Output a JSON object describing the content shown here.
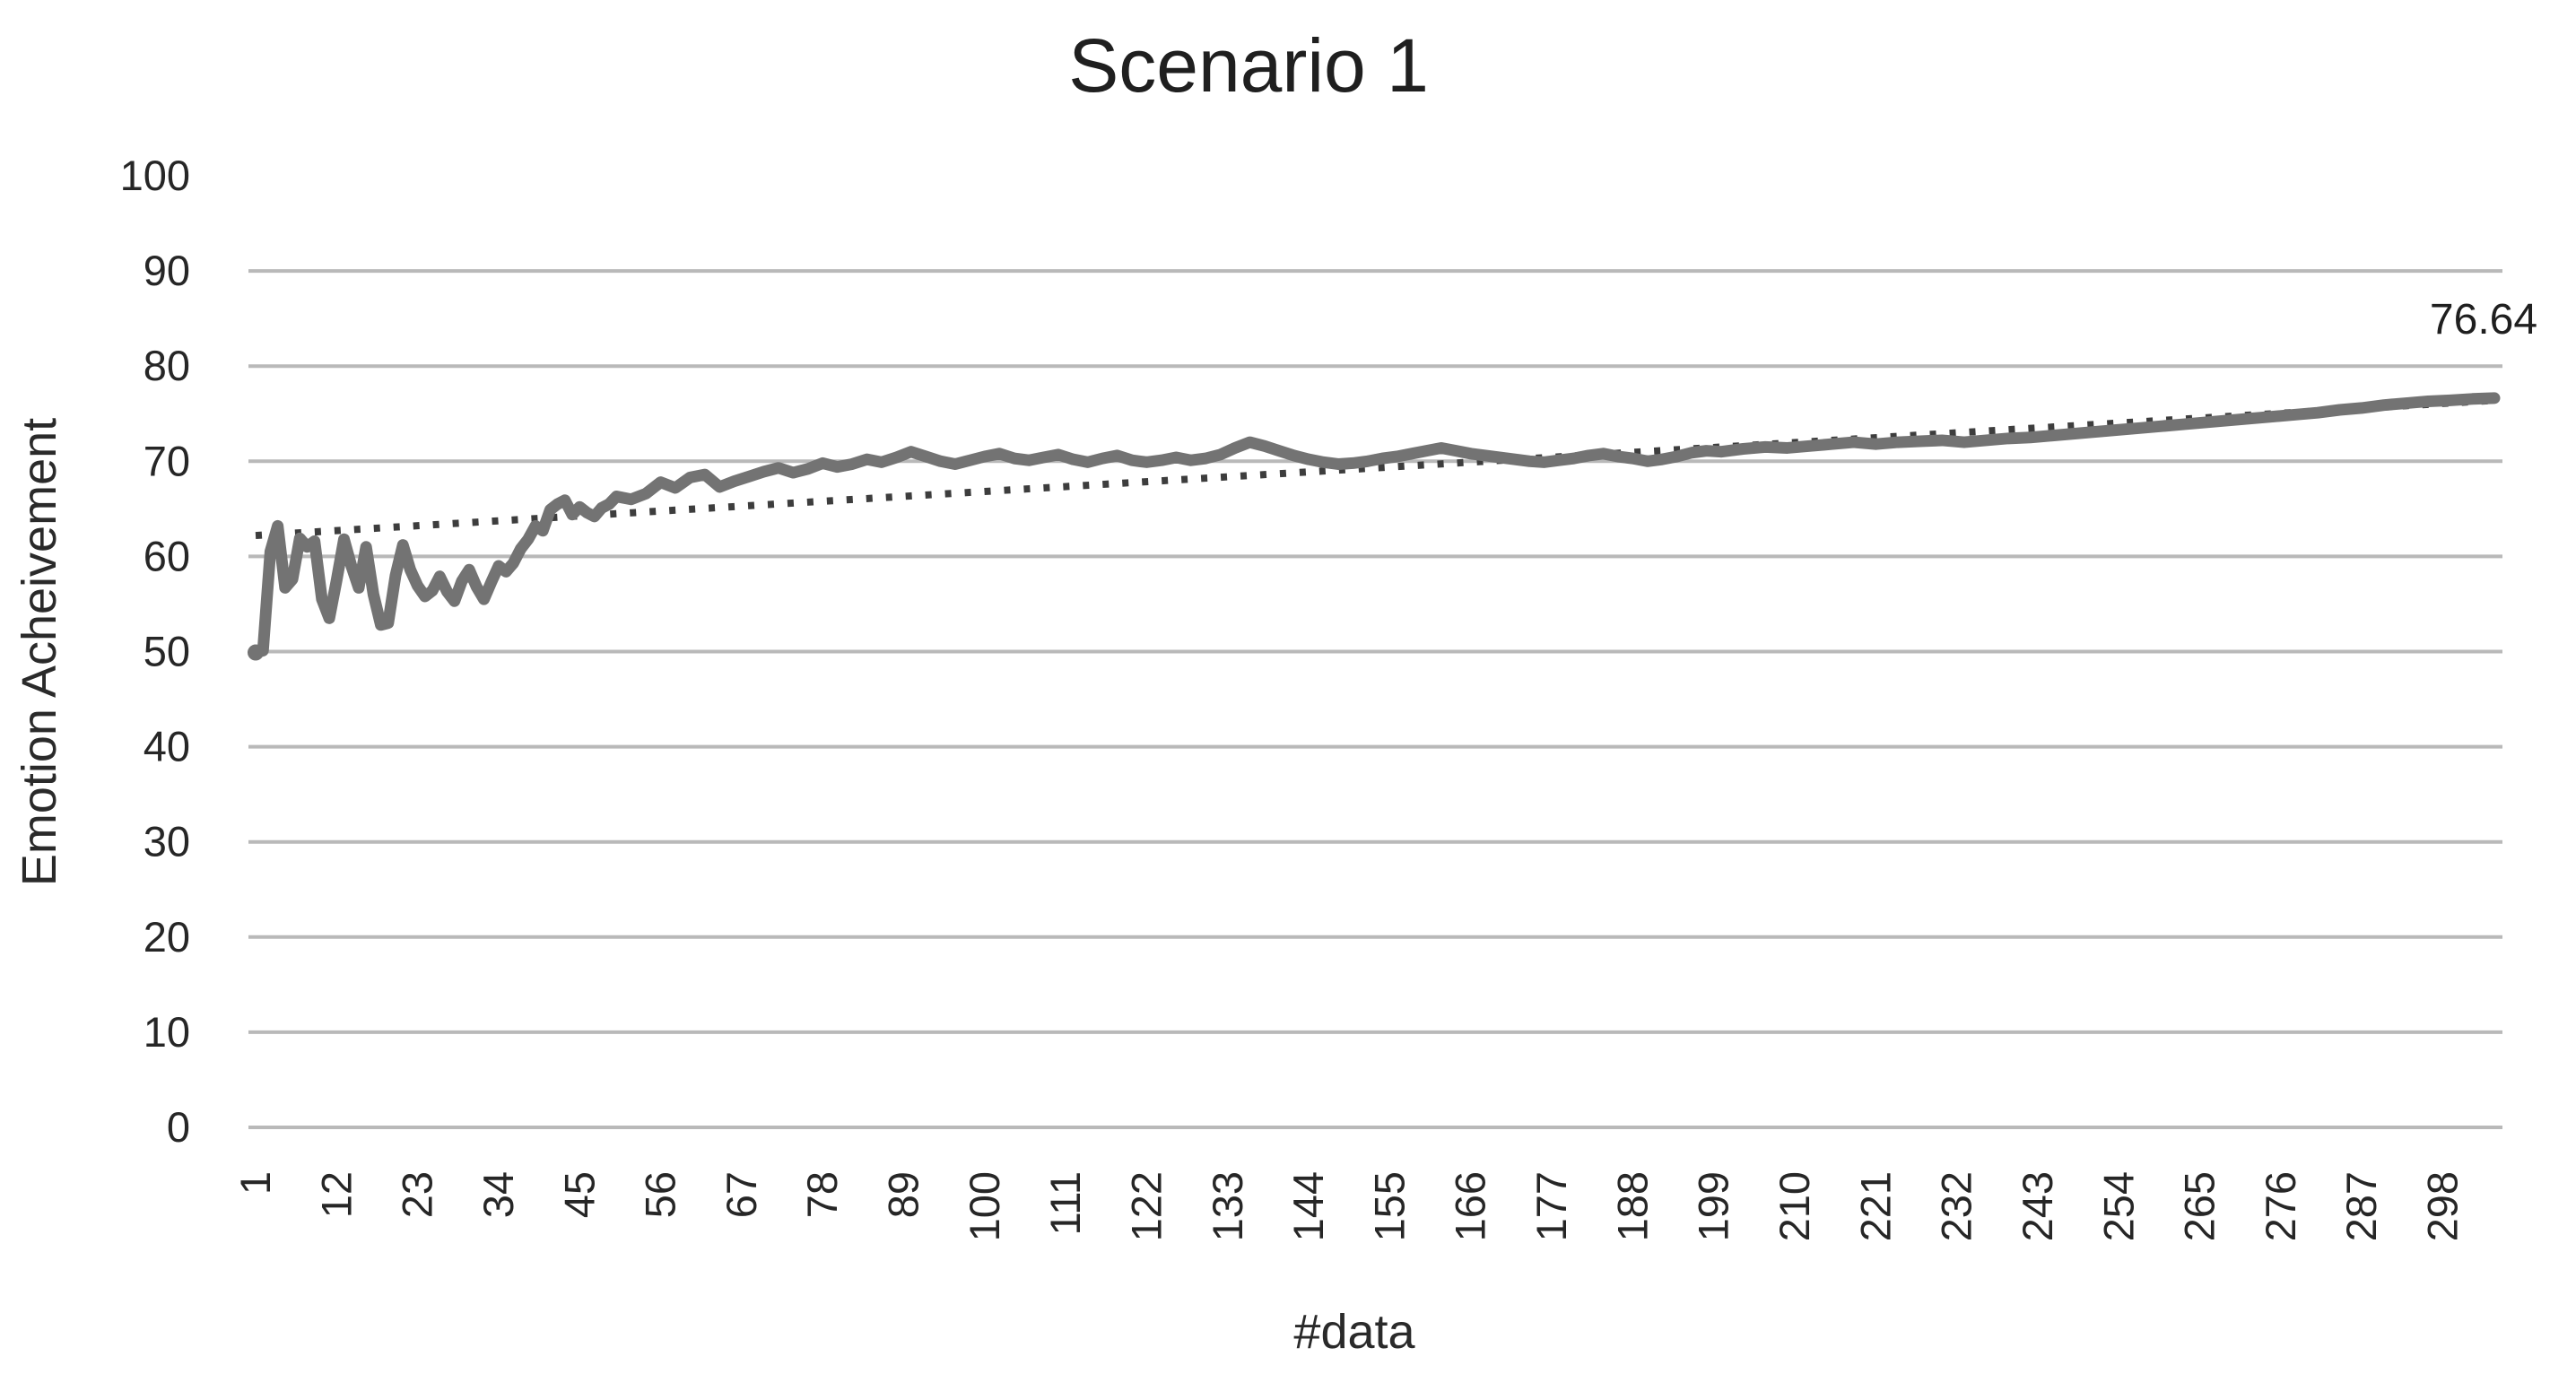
{
  "chart_data": {
    "type": "line",
    "title": "Scenario 1",
    "xlabel": "#data",
    "ylabel": "Emotion Acheivement",
    "legend": "none",
    "grid": "horizontal gridlines at 0-90, none drawn at 100",
    "ylim": [
      0,
      100
    ],
    "x_range": [
      1,
      305
    ],
    "y_ticks": [
      0,
      10,
      20,
      30,
      40,
      50,
      60,
      70,
      80,
      90,
      100
    ],
    "x_ticks": [
      1,
      12,
      23,
      34,
      45,
      56,
      67,
      78,
      89,
      100,
      111,
      122,
      133,
      144,
      155,
      166,
      177,
      188,
      199,
      210,
      221,
      232,
      243,
      254,
      265,
      276,
      287,
      298
    ],
    "end_label": "76.64",
    "colors": {
      "series": "#737373",
      "trendline": "#3d3d3d",
      "gridline": "#b9b9b9",
      "text": "#262626"
    },
    "series": [
      {
        "name": "Emotion Acheivement",
        "style": "solid",
        "color": "#737373",
        "points": [
          [
            1,
            49.9
          ],
          [
            2,
            50.1
          ],
          [
            3,
            60.5
          ],
          [
            4,
            63.2
          ],
          [
            5,
            56.7
          ],
          [
            6,
            57.6
          ],
          [
            7,
            61.9
          ],
          [
            8,
            61.0
          ],
          [
            9,
            61.6
          ],
          [
            10,
            55.5
          ],
          [
            11,
            53.5
          ],
          [
            12,
            57.5
          ],
          [
            13,
            61.8
          ],
          [
            14,
            59.0
          ],
          [
            15,
            56.7
          ],
          [
            16,
            61.0
          ],
          [
            17,
            56.0
          ],
          [
            18,
            52.8
          ],
          [
            19,
            53.0
          ],
          [
            20,
            58.0
          ],
          [
            21,
            61.2
          ],
          [
            22,
            58.6
          ],
          [
            23,
            56.9
          ],
          [
            24,
            55.8
          ],
          [
            25,
            56.4
          ],
          [
            26,
            57.9
          ],
          [
            27,
            56.3
          ],
          [
            28,
            55.3
          ],
          [
            29,
            57.4
          ],
          [
            30,
            58.6
          ],
          [
            31,
            56.8
          ],
          [
            32,
            55.5
          ],
          [
            33,
            57.3
          ],
          [
            34,
            59.0
          ],
          [
            35,
            58.4
          ],
          [
            36,
            59.3
          ],
          [
            37,
            60.8
          ],
          [
            38,
            61.8
          ],
          [
            39,
            63.2
          ],
          [
            40,
            62.7
          ],
          [
            41,
            64.9
          ],
          [
            42,
            65.5
          ],
          [
            43,
            65.9
          ],
          [
            44,
            64.4
          ],
          [
            45,
            65.2
          ],
          [
            46,
            64.6
          ],
          [
            47,
            64.2
          ],
          [
            48,
            65.1
          ],
          [
            49,
            65.5
          ],
          [
            50,
            66.3
          ],
          [
            52,
            66.0
          ],
          [
            54,
            66.6
          ],
          [
            56,
            67.8
          ],
          [
            58,
            67.2
          ],
          [
            60,
            68.3
          ],
          [
            62,
            68.6
          ],
          [
            64,
            67.3
          ],
          [
            66,
            67.9
          ],
          [
            68,
            68.4
          ],
          [
            70,
            68.9
          ],
          [
            72,
            69.3
          ],
          [
            74,
            68.8
          ],
          [
            76,
            69.2
          ],
          [
            78,
            69.8
          ],
          [
            80,
            69.4
          ],
          [
            82,
            69.7
          ],
          [
            84,
            70.2
          ],
          [
            86,
            69.9
          ],
          [
            88,
            70.4
          ],
          [
            90,
            71.0
          ],
          [
            92,
            70.5
          ],
          [
            94,
            70.0
          ],
          [
            96,
            69.7
          ],
          [
            98,
            70.1
          ],
          [
            100,
            70.5
          ],
          [
            102,
            70.8
          ],
          [
            104,
            70.3
          ],
          [
            106,
            70.1
          ],
          [
            108,
            70.4
          ],
          [
            110,
            70.7
          ],
          [
            112,
            70.2
          ],
          [
            114,
            69.9
          ],
          [
            116,
            70.3
          ],
          [
            118,
            70.6
          ],
          [
            120,
            70.1
          ],
          [
            122,
            69.9
          ],
          [
            124,
            70.1
          ],
          [
            126,
            70.4
          ],
          [
            128,
            70.1
          ],
          [
            130,
            70.3
          ],
          [
            132,
            70.7
          ],
          [
            134,
            71.4
          ],
          [
            136,
            72.0
          ],
          [
            138,
            71.6
          ],
          [
            140,
            71.1
          ],
          [
            142,
            70.6
          ],
          [
            144,
            70.2
          ],
          [
            146,
            69.9
          ],
          [
            148,
            69.7
          ],
          [
            150,
            69.8
          ],
          [
            152,
            70.0
          ],
          [
            154,
            70.3
          ],
          [
            156,
            70.5
          ],
          [
            158,
            70.8
          ],
          [
            160,
            71.1
          ],
          [
            162,
            71.4
          ],
          [
            164,
            71.1
          ],
          [
            166,
            70.8
          ],
          [
            168,
            70.6
          ],
          [
            170,
            70.4
          ],
          [
            172,
            70.2
          ],
          [
            174,
            70.0
          ],
          [
            176,
            69.9
          ],
          [
            178,
            70.1
          ],
          [
            180,
            70.3
          ],
          [
            182,
            70.6
          ],
          [
            184,
            70.8
          ],
          [
            186,
            70.5
          ],
          [
            188,
            70.3
          ],
          [
            190,
            70.0
          ],
          [
            192,
            70.2
          ],
          [
            194,
            70.5
          ],
          [
            196,
            70.9
          ],
          [
            198,
            71.1
          ],
          [
            200,
            71.0
          ],
          [
            203,
            71.3
          ],
          [
            206,
            71.5
          ],
          [
            209,
            71.4
          ],
          [
            212,
            71.6
          ],
          [
            215,
            71.8
          ],
          [
            218,
            72.0
          ],
          [
            221,
            71.8
          ],
          [
            224,
            72.0
          ],
          [
            227,
            72.1
          ],
          [
            230,
            72.2
          ],
          [
            233,
            72.0
          ],
          [
            236,
            72.2
          ],
          [
            239,
            72.4
          ],
          [
            242,
            72.5
          ],
          [
            245,
            72.7
          ],
          [
            248,
            72.9
          ],
          [
            251,
            73.1
          ],
          [
            254,
            73.3
          ],
          [
            257,
            73.5
          ],
          [
            260,
            73.7
          ],
          [
            263,
            73.9
          ],
          [
            266,
            74.1
          ],
          [
            269,
            74.3
          ],
          [
            272,
            74.5
          ],
          [
            275,
            74.7
          ],
          [
            278,
            74.9
          ],
          [
            281,
            75.1
          ],
          [
            284,
            75.4
          ],
          [
            287,
            75.6
          ],
          [
            290,
            75.9
          ],
          [
            293,
            76.1
          ],
          [
            296,
            76.3
          ],
          [
            299,
            76.4
          ],
          [
            302,
            76.55
          ],
          [
            305,
            76.64
          ]
        ]
      },
      {
        "name": "Linear trendline",
        "style": "dotted",
        "color": "#3d3d3d",
        "points": [
          [
            1,
            62.2
          ],
          [
            305,
            76.4
          ]
        ]
      }
    ]
  }
}
